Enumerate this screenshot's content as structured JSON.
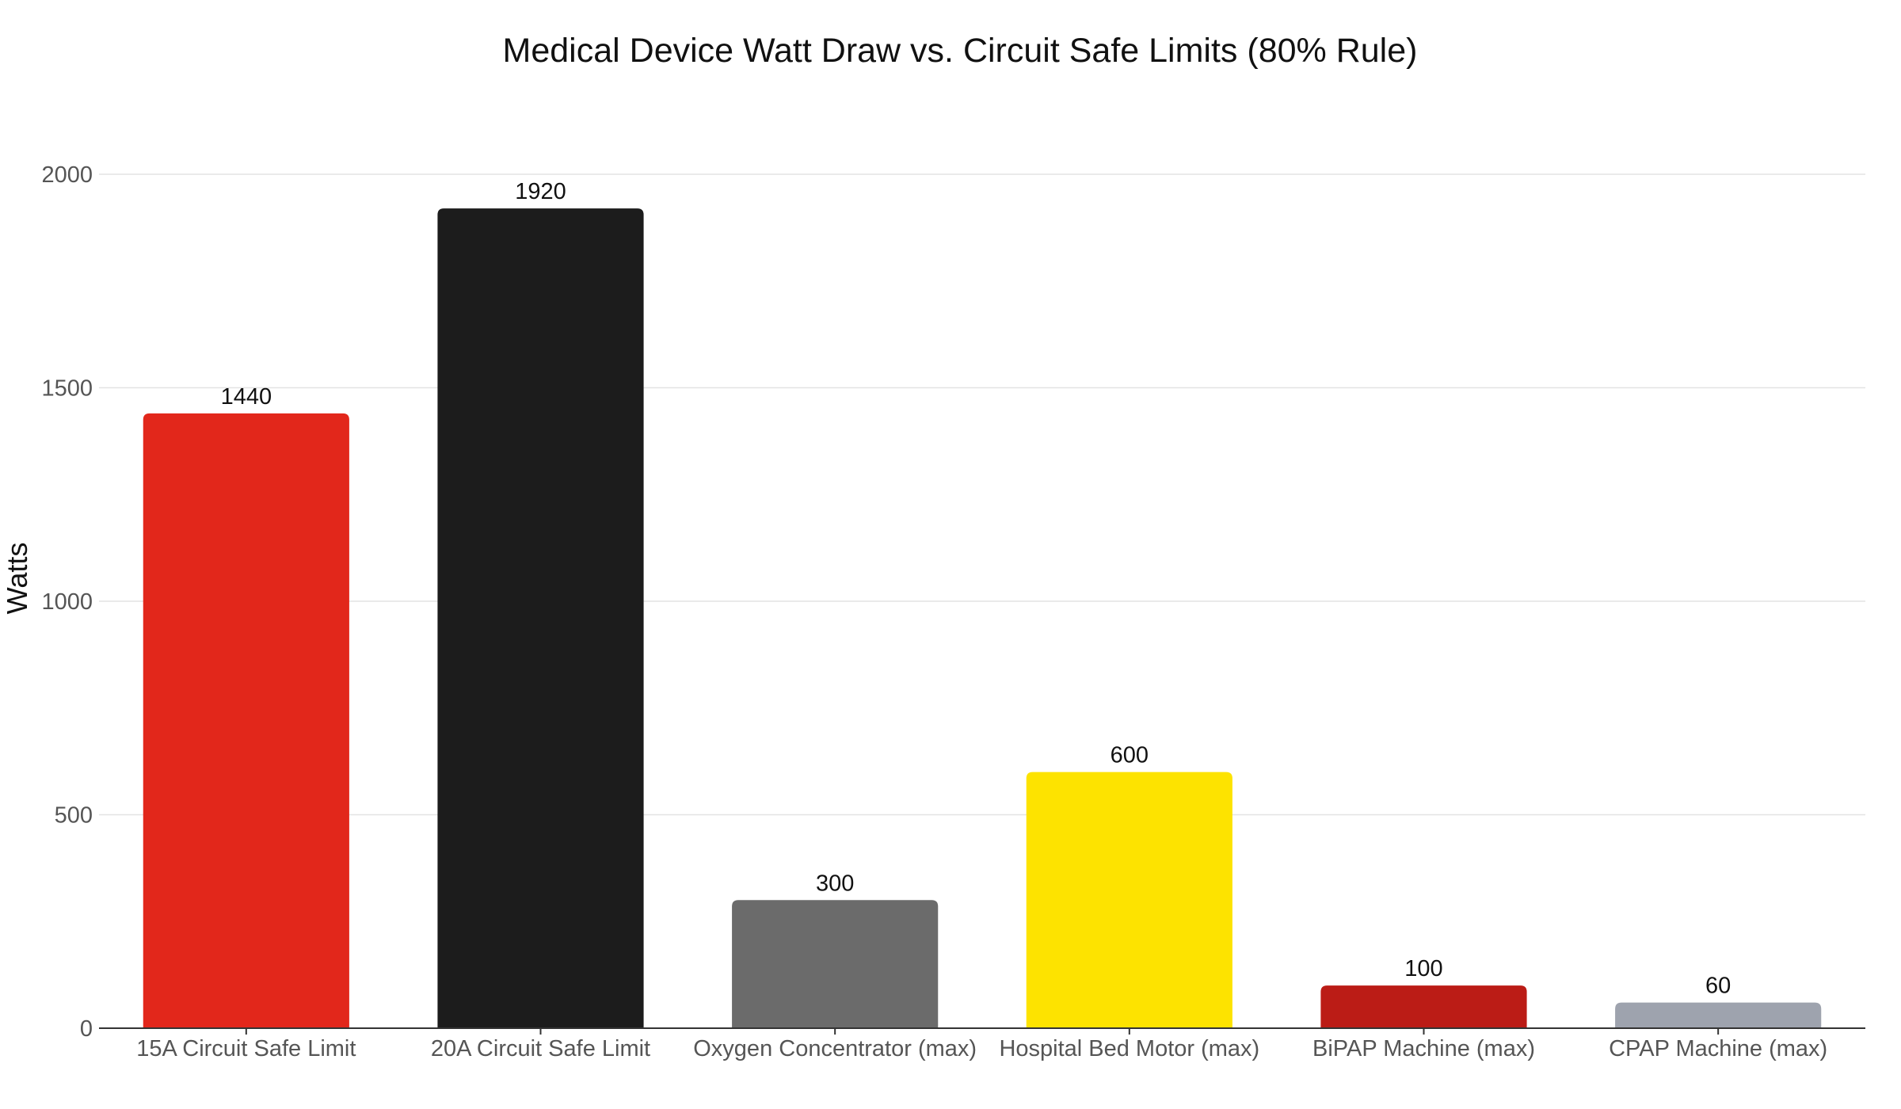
{
  "chart_data": {
    "type": "bar",
    "title": "Medical Device Watt Draw vs. Circuit Safe Limits (80% Rule)",
    "xlabel": "",
    "ylabel": "Watts",
    "ylim": [
      0,
      2000
    ],
    "yticks": [
      0,
      500,
      1000,
      1500,
      2000
    ],
    "grid": true,
    "legend": "none",
    "categories": [
      "15A Circuit Safe Limit",
      "20A Circuit Safe Limit",
      "Oxygen Concentrator (max)",
      "Hospital Bed Motor (max)",
      "BiPAP Machine (max)",
      "CPAP Machine (max)"
    ],
    "values": [
      1440,
      1920,
      300,
      600,
      100,
      60
    ],
    "colors": [
      "#e2271b",
      "#1c1c1c",
      "#6b6b6b",
      "#fde300",
      "#bb1c16",
      "#9ea3ae"
    ]
  }
}
